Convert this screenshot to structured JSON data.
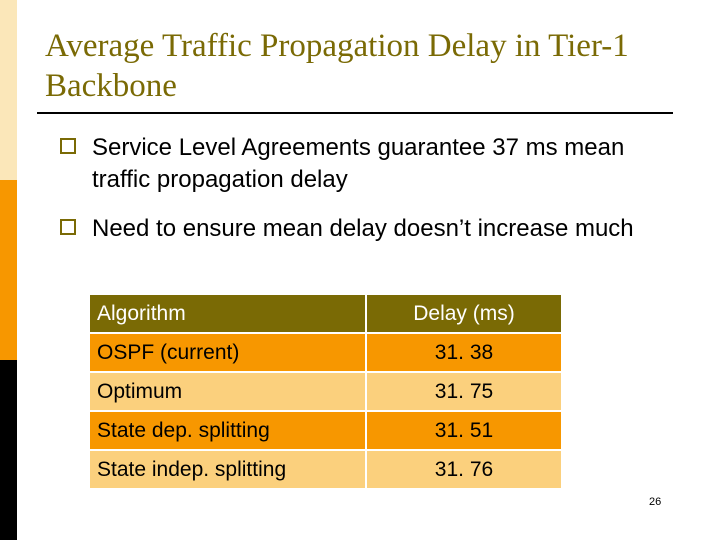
{
  "slide": {
    "title": "Average Traffic Propagation Delay in Tier-1 Backbone",
    "bullets": [
      "Service Level Agreements guarantee 37 ms mean traffic propagation delay",
      "Need to ensure mean delay doesn’t increase much"
    ],
    "page_number": "26",
    "colors": {
      "title": "#7a6a05",
      "header": "#7a6a05",
      "row_dark": "#f79700",
      "row_light": "#fbd07d"
    }
  },
  "table": {
    "headers": [
      "Algorithm",
      "Delay (ms)"
    ],
    "rows": [
      [
        "OSPF (current)",
        "31. 38"
      ],
      [
        "Optimum",
        "31. 75"
      ],
      [
        "State dep. splitting",
        "31. 51"
      ],
      [
        "State indep. splitting",
        "31. 76"
      ]
    ]
  }
}
